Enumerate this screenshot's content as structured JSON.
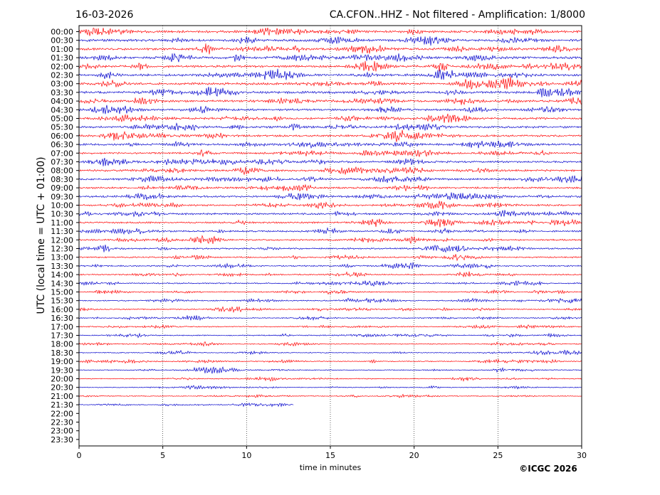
{
  "header": {
    "date": "16-03-2026",
    "station_info": "CA.CFON..HHZ - Not filtered - Amplification: 1/8000"
  },
  "footer": {
    "copyright": "©ICGC 2026"
  },
  "chart_data": {
    "type": "line",
    "title": "CA.CFON..HHZ - Not filtered - Amplification: 1/8000",
    "xlabel": "time in minutes",
    "ylabel": "UTC (local time = UTC + 01:00)",
    "xlim": [
      0,
      30
    ],
    "x_ticks": [
      0,
      5,
      10,
      15,
      20,
      25,
      30
    ],
    "grid": "vertical dotted lines at 5-minute intervals",
    "row_labels": [
      "00:00",
      "00:30",
      "01:00",
      "01:30",
      "02:00",
      "02:30",
      "03:00",
      "03:30",
      "04:00",
      "04:30",
      "05:00",
      "05:30",
      "06:00",
      "06:30",
      "07:00",
      "07:30",
      "08:00",
      "08:30",
      "09:00",
      "09:30",
      "10:00",
      "10:30",
      "11:00",
      "11:30",
      "12:00",
      "12:30",
      "13:00",
      "13:30",
      "14:00",
      "14:30",
      "15:00",
      "15:30",
      "16:00",
      "16:30",
      "17:00",
      "17:30",
      "18:00",
      "18:30",
      "19:00",
      "19:30",
      "20:00",
      "20:30",
      "21:00",
      "21:30",
      "22:00",
      "22:30",
      "23:00",
      "23:30"
    ],
    "trace_colors": [
      "#ff0000",
      "#0000cc"
    ],
    "trace_end_minutes": [
      30,
      30,
      30,
      30,
      30,
      30,
      30,
      30,
      30,
      30,
      30,
      30,
      30,
      30,
      30,
      30,
      30,
      30,
      30,
      30,
      30,
      30,
      30,
      30,
      30,
      30,
      30,
      30,
      30,
      30,
      30,
      30,
      30,
      30,
      30,
      30,
      30,
      30,
      30,
      30,
      30,
      30,
      30,
      12.8,
      0,
      0,
      0,
      0
    ],
    "trace_relative_amplitude": [
      1.0,
      1.0,
      1.0,
      1.0,
      1.0,
      1.0,
      1.0,
      1.0,
      0.9,
      0.9,
      0.9,
      0.9,
      0.85,
      0.85,
      0.85,
      0.85,
      0.85,
      0.85,
      0.8,
      0.8,
      0.8,
      0.8,
      0.75,
      0.7,
      0.65,
      0.65,
      0.6,
      0.6,
      0.55,
      0.55,
      0.5,
      0.5,
      0.5,
      0.45,
      0.45,
      0.45,
      0.4,
      0.4,
      0.4,
      0.4,
      0.4,
      0.35,
      0.35,
      0.3,
      0,
      0,
      0,
      0
    ]
  }
}
